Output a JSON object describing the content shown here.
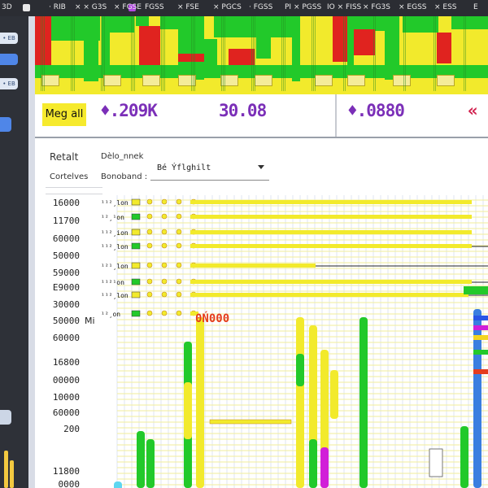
{
  "topbar": {
    "items": [
      "3D",
      "· RIB",
      "× × G3S",
      "× FGSE",
      "FGSS",
      "× FSE",
      "× PGCS",
      "· FGSS",
      "PI × PGSS",
      "IO × FISS",
      "× FG3S",
      "× EGSS",
      "× ESS",
      "E"
    ]
  },
  "dock": {
    "buttons": [
      "• EB",
      "",
      "• EB",
      ""
    ]
  },
  "metrics": {
    "pill_label": "Meg all",
    "values": [
      {
        "text": "♦.209K",
        "color": "#7b2fb8"
      },
      {
        "text": "30.08",
        "color": "#7b2fb8"
      },
      {
        "text": "♦.0880",
        "color": "#7b2fb8"
      },
      {
        "text": "«",
        "color": "#d11f4d"
      }
    ]
  },
  "filters": {
    "retail_label": "Retalt",
    "data_label": "Dèlo_nnek",
    "centres_label": "Cortelves",
    "brand_label": "Bonoband :",
    "select_value": "Bé Ýflghilt"
  },
  "y_axis": {
    "values": [
      "16000",
      "11700",
      "60000",
      "50000",
      "59000",
      "E9000",
      "30000",
      "50000",
      "60000",
      "16800",
      "00000",
      "10000",
      "60000",
      "200",
      "11800",
      "0000"
    ]
  },
  "chart": {
    "stamp": "0Ń000",
    "side_label": "Mi",
    "row_labels": [
      "¹¹²¸lon",
      "¹²¸¹on",
      "¹¹²¸ion",
      "¹¹²¸lon",
      "¹²¹¸lon",
      "¹¹²¹on",
      "¹¹²¸lon",
      "¹²¸on"
    ]
  },
  "colors": {
    "green": "#22c92a",
    "yellow": "#f2ea2c",
    "red": "#e0231f",
    "purple": "#7b2fb8",
    "magenta": "#d11fd8",
    "blue": "#3a7ee0"
  }
}
